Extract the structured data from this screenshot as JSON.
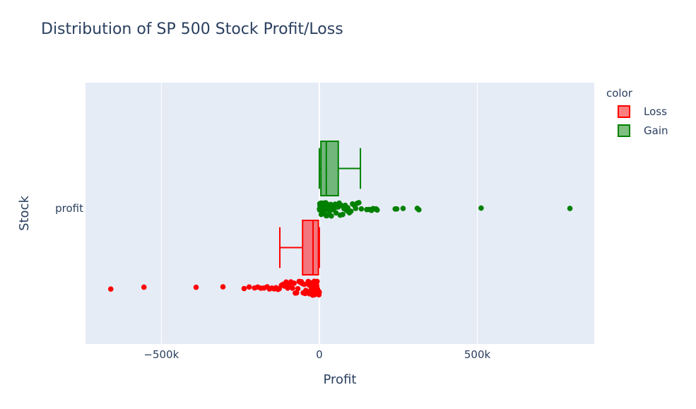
{
  "chart_data": {
    "type": "box",
    "title": "Distribution of SP 500 Stock Profit/Loss",
    "xlabel": "Profit",
    "ylabel": "Stock",
    "xlim": [
      -740000,
      870000
    ],
    "x_ticks": [
      {
        "value": -500000,
        "label": "−500k"
      },
      {
        "value": 0,
        "label": "0"
      },
      {
        "value": 500000,
        "label": "500k"
      }
    ],
    "y_ticks": [
      {
        "label": "profit"
      }
    ],
    "grid": true,
    "legend": {
      "title": "color",
      "position": "top-right"
    },
    "series": [
      {
        "name": "Gain",
        "color": "#008000",
        "fill": "rgba(0,128,0,0.5)",
        "box": {
          "lowerfence": 0,
          "q1": 5000,
          "median": 22000,
          "q3": 60000,
          "upperfence": 130000
        },
        "outliers": [
          133000,
          150000,
          158000,
          165000,
          170000,
          175000,
          178000,
          180000,
          183000,
          240000,
          245000,
          265000,
          310000,
          315000,
          512000,
          793000
        ],
        "points": [
          500,
          1000,
          1500,
          2000,
          3000,
          4000,
          5000,
          6000,
          7000,
          8000,
          9000,
          10000,
          11000,
          12000,
          13000,
          14000,
          15000,
          16000,
          17000,
          18000,
          19000,
          20000,
          21000,
          22000,
          23000,
          24000,
          25000,
          26000,
          28000,
          30000,
          32000,
          34000,
          36000,
          38000,
          40000,
          42000,
          45000,
          48000,
          50000,
          53000,
          56000,
          60000,
          63000,
          66000,
          70000,
          74000,
          78000,
          82000,
          86000,
          90000,
          95000,
          100000,
          105000,
          110000,
          115000,
          120000,
          125000
        ]
      },
      {
        "name": "Loss",
        "color": "#ff0000",
        "fill": "rgba(255,0,0,0.5)",
        "box": {
          "lowerfence": -125000,
          "q1": -53000,
          "median": -20000,
          "q3": -3000,
          "upperfence": 0
        },
        "outliers": [
          -660000,
          -555000,
          -390000,
          -305000,
          -238000,
          -222000,
          -205000,
          -195000,
          -185000,
          -175000,
          -165000,
          -158000,
          -150000,
          -143000,
          -137000,
          -131000,
          -127000
        ],
        "points": [
          -500,
          -1000,
          -1500,
          -2000,
          -3000,
          -4000,
          -5000,
          -6000,
          -7000,
          -8000,
          -9000,
          -10000,
          -11000,
          -12000,
          -13000,
          -14000,
          -15000,
          -16000,
          -17000,
          -18000,
          -19000,
          -20000,
          -21000,
          -22000,
          -23000,
          -24000,
          -25000,
          -27000,
          -29000,
          -31000,
          -33000,
          -35000,
          -37000,
          -39000,
          -41000,
          -43000,
          -45000,
          -48000,
          -51000,
          -54000,
          -57000,
          -60000,
          -64000,
          -68000,
          -72000,
          -76000,
          -80000,
          -85000,
          -90000,
          -95000,
          -100000,
          -105000,
          -110000,
          -115000,
          -120000
        ]
      }
    ]
  }
}
